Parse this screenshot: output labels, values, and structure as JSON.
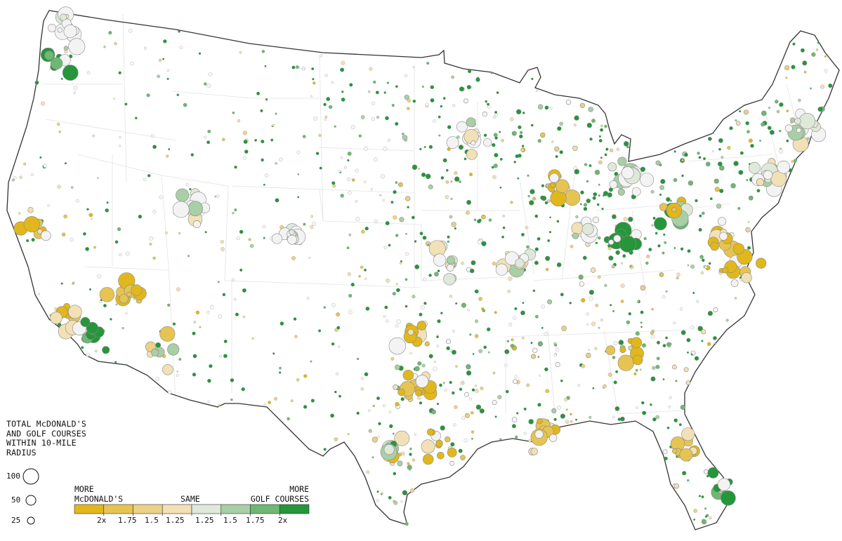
{
  "legend": {
    "title_lines": [
      "TOTAL McDONALD'S",
      "AND GOLF COURSES",
      "WITHIN 10-MILE",
      "RADIUS"
    ],
    "size_values": [
      "100",
      "50",
      "25"
    ],
    "label_left_1": "MORE",
    "label_left_2": "McDONALD'S",
    "label_center": "SAME",
    "label_right_1": "MORE",
    "label_right_2": "GOLF COURSES",
    "ticks": [
      "2x",
      "1.75",
      "1.5",
      "1.25",
      "1.25",
      "1.5",
      "1.75",
      "2x"
    ],
    "colors": [
      "#e1b71c",
      "#e6c451",
      "#ebd186",
      "#f2e0b6",
      "#dfe8d9",
      "#a8cfa5",
      "#6db872",
      "#25963a"
    ],
    "outline_color": "#999999"
  }
}
